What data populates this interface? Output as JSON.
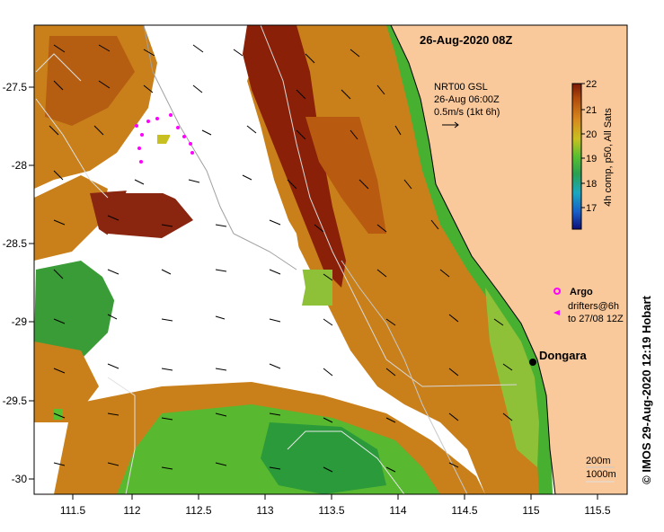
{
  "map": {
    "title": "26-Aug-2020 08Z",
    "x_ticks": [
      "111.5",
      "112",
      "112.5",
      "113",
      "113.5",
      "114",
      "114.5",
      "115",
      "115.5"
    ],
    "y_ticks": [
      "-27.5",
      "-28",
      "-28.5",
      "-29",
      "-29.5",
      "-30"
    ],
    "place_name": "Dongara",
    "current_legend": {
      "line1": "NRT00 GSL",
      "line2": "26-Aug 06:00Z",
      "line3": "0.5m/s (1kt 6h)"
    },
    "colorbar": {
      "ticks": [
        "22",
        "21",
        "20",
        "19",
        "18",
        "17"
      ],
      "label": "4h comp, p50, All Sats"
    },
    "argo_label": "Argo",
    "drifter_label_1": "drifters@6h",
    "drifter_label_2": "to 27/08 12Z",
    "contour_legend_1": "200m",
    "contour_legend_2": "1000m",
    "credit": "© IMOS 29-Aug-2020 12:19 Hobart",
    "colors": {
      "land": "#f9c89b",
      "cloud": "#ffffff",
      "cold": "#2a9a3a",
      "warm": "#c9801a",
      "hot": "#7a1808"
    }
  }
}
